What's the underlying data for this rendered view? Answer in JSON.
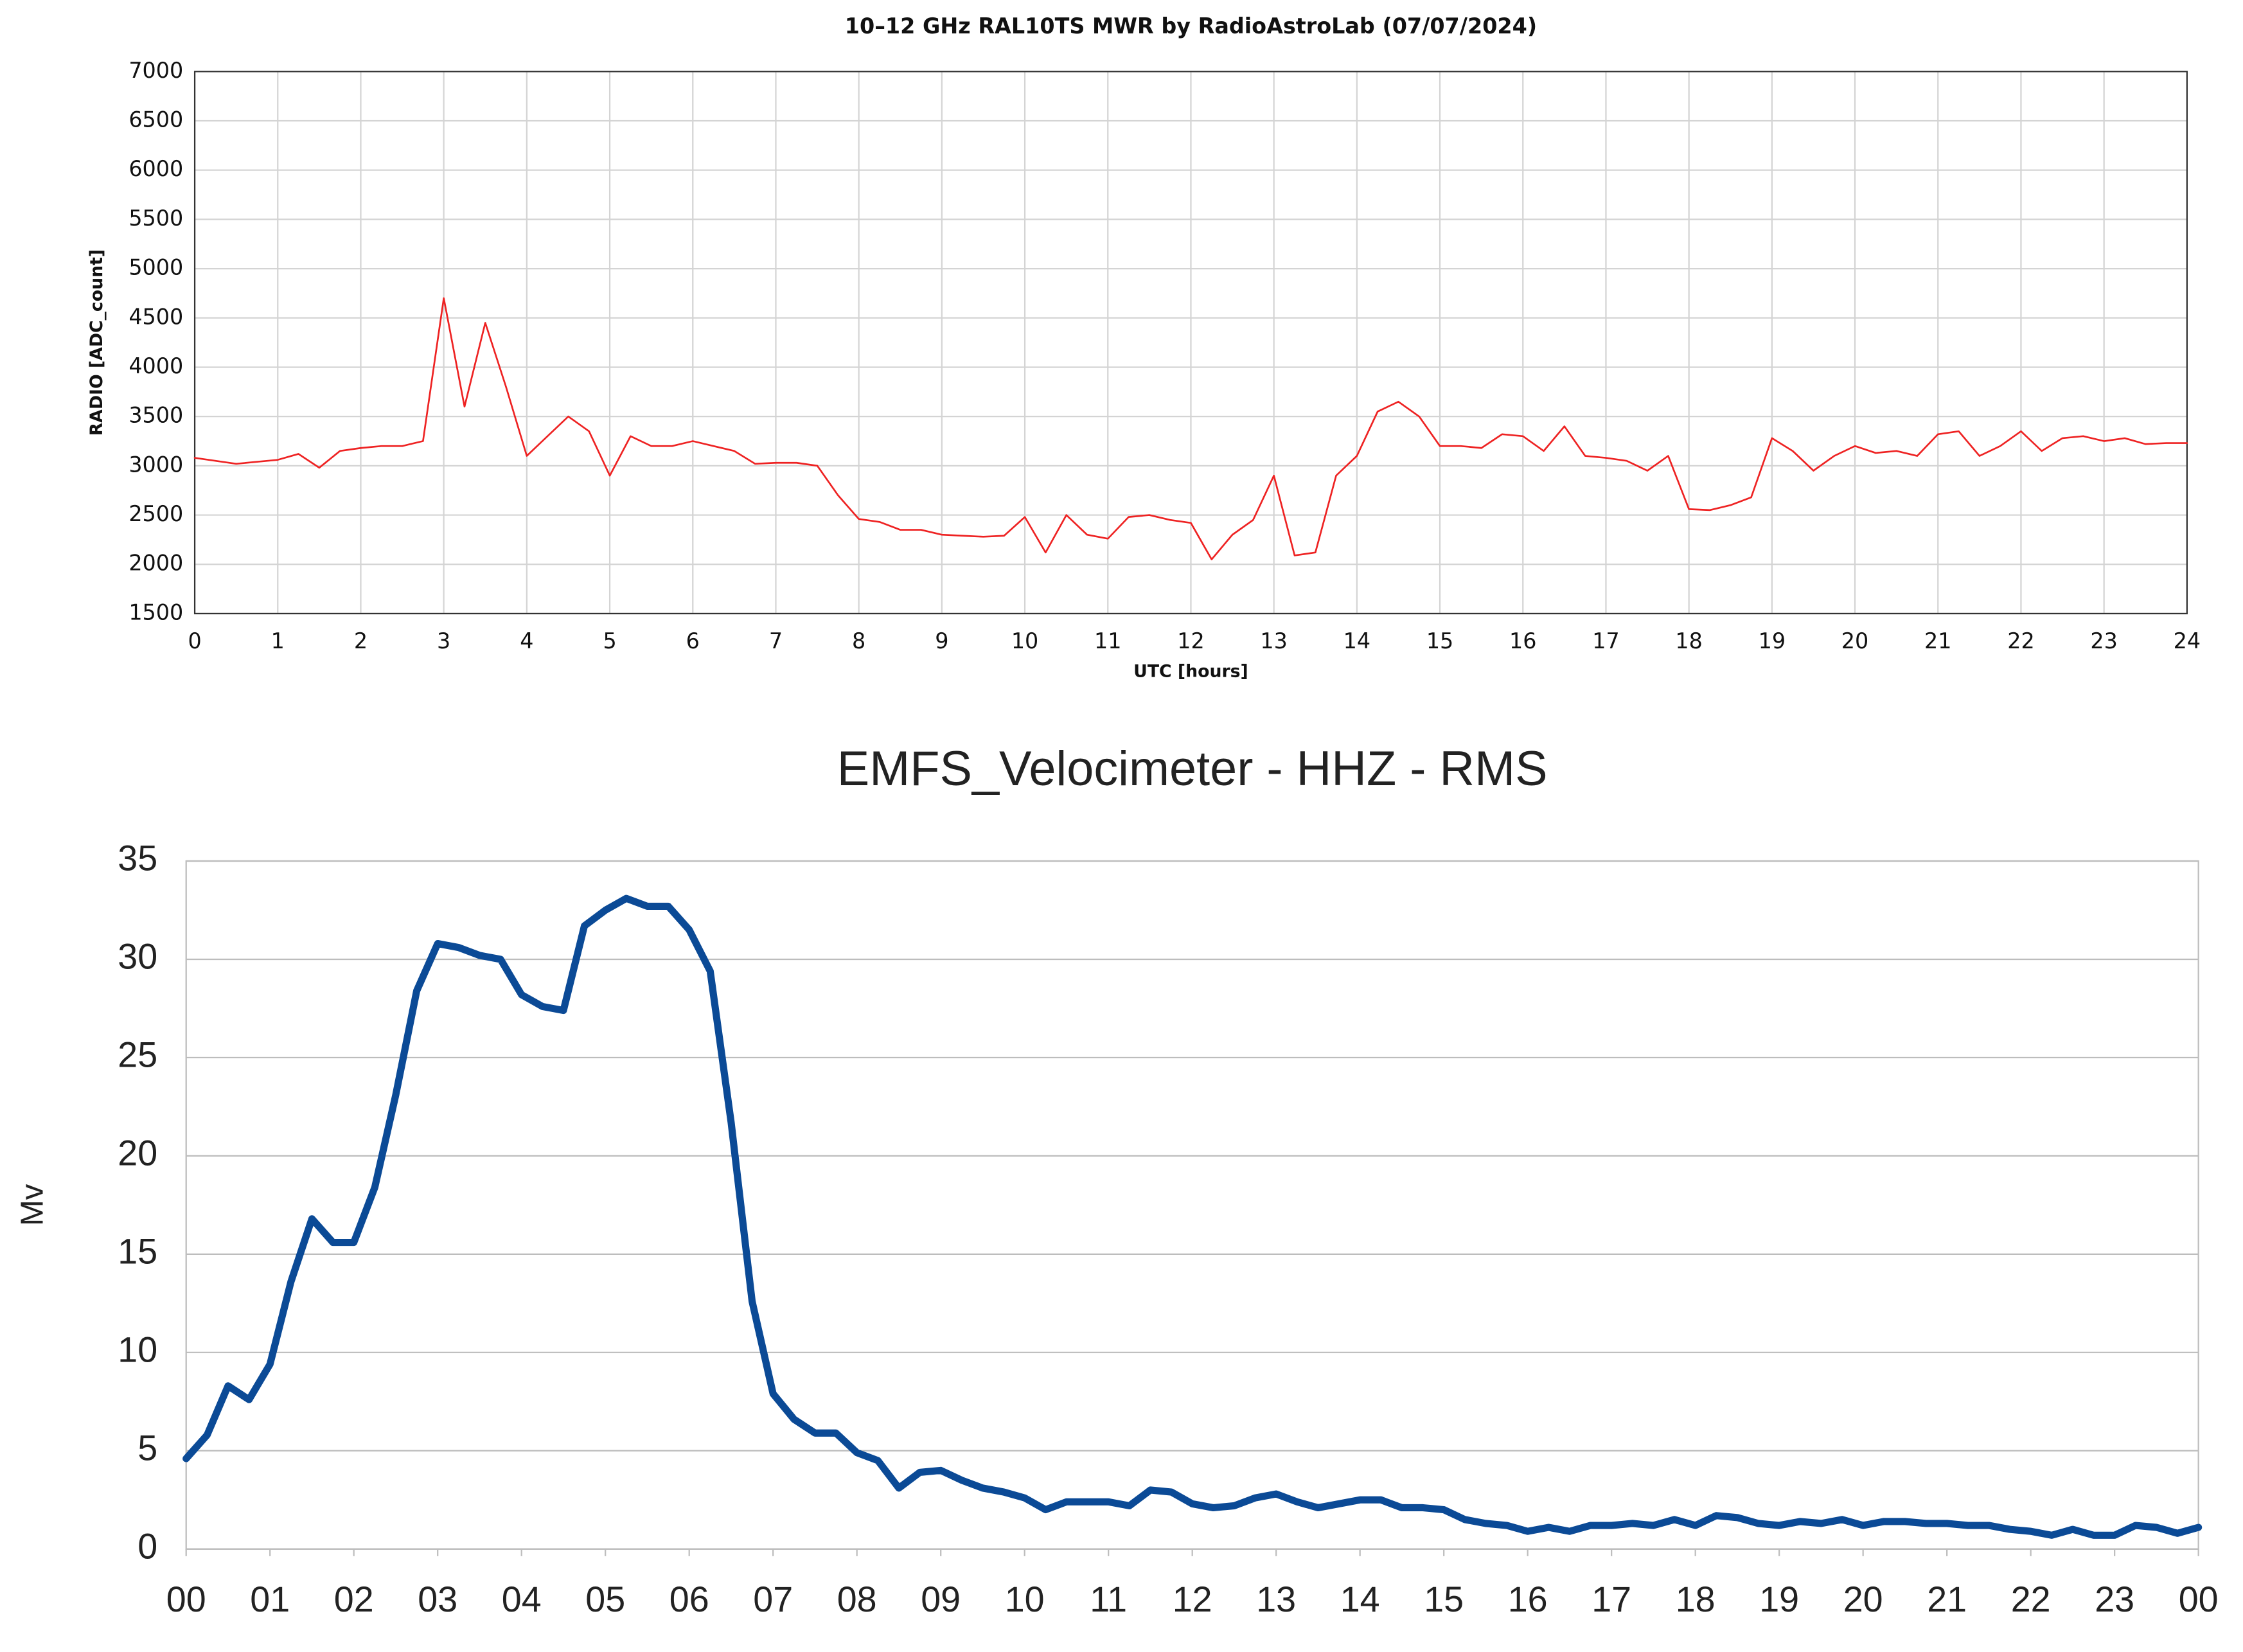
{
  "chart_data": [
    {
      "type": "line",
      "title": "10–12 GHz RAL10TS MWR by RadioAstroLab  (07/07/2024)",
      "xlabel": "UTC [hours]",
      "ylabel": "RADIO [ADC_count]",
      "x": [
        0,
        0.25,
        0.5,
        0.75,
        1,
        1.25,
        1.5,
        1.75,
        2,
        2.25,
        2.5,
        2.75,
        3,
        3.25,
        3.5,
        3.75,
        4,
        4.25,
        4.5,
        4.75,
        5,
        5.25,
        5.5,
        5.75,
        6,
        6.25,
        6.5,
        6.75,
        7,
        7.25,
        7.5,
        7.75,
        8,
        8.25,
        8.5,
        8.75,
        9,
        9.25,
        9.5,
        9.75,
        10,
        10.25,
        10.5,
        10.75,
        11,
        11.25,
        11.5,
        11.75,
        12,
        12.25,
        12.5,
        12.75,
        13,
        13.25,
        13.5,
        13.75,
        14,
        14.25,
        14.5,
        14.75,
        15,
        15.25,
        15.5,
        15.75,
        16,
        16.25,
        16.5,
        16.75,
        17,
        17.25,
        17.5,
        17.75,
        18,
        18.25,
        18.5,
        18.75,
        19,
        19.25,
        19.5,
        19.75,
        20,
        20.25,
        20.5,
        20.75,
        21,
        21.25,
        21.5,
        21.75,
        22,
        22.25,
        22.5,
        22.75,
        23,
        23.25,
        23.5,
        23.75,
        24
      ],
      "series": [
        {
          "name": "RADIO",
          "color": "#ee2222",
          "values": [
            3080,
            3050,
            3020,
            3040,
            3060,
            3120,
            2980,
            3150,
            3180,
            3200,
            3200,
            3250,
            4700,
            3600,
            4450,
            3800,
            3100,
            3300,
            3500,
            3350,
            2900,
            3300,
            3200,
            3200,
            3250,
            3200,
            3150,
            3020,
            3030,
            3030,
            3000,
            2700,
            2460,
            2430,
            2350,
            2350,
            2300,
            2290,
            2280,
            2290,
            2480,
            2120,
            2500,
            2300,
            2260,
            2480,
            2500,
            2450,
            2420,
            2050,
            2300,
            2450,
            2900,
            2090,
            2120,
            2900,
            3100,
            3550,
            3650,
            3500,
            3200,
            3200,
            3180,
            3320,
            3300,
            3150,
            3400,
            3100,
            3080,
            3050,
            2950,
            3100,
            2560,
            2550,
            2600,
            2680,
            3280,
            3150,
            2950,
            3100,
            3200,
            3130,
            3150,
            3100,
            3320,
            3350,
            3100,
            3200,
            3350,
            3150,
            3280,
            3300,
            3250,
            3280,
            3220,
            3230,
            3230
          ]
        }
      ],
      "xlim": [
        0,
        24
      ],
      "xticks": [
        0,
        1,
        2,
        3,
        4,
        5,
        6,
        7,
        8,
        9,
        10,
        11,
        12,
        13,
        14,
        15,
        16,
        17,
        18,
        19,
        20,
        21,
        22,
        23,
        24
      ],
      "ylim": [
        1500,
        7000
      ],
      "yticks": [
        1500,
        2000,
        2500,
        3000,
        3500,
        4000,
        4500,
        5000,
        5500,
        6000,
        6500,
        7000
      ],
      "grid": "both"
    },
    {
      "type": "line",
      "title": "EMFS_Velocimeter - HHZ - RMS",
      "ylabel": "Mv",
      "x": [
        0,
        0.25,
        0.5,
        0.75,
        1,
        1.25,
        1.5,
        1.75,
        2,
        2.25,
        2.5,
        2.75,
        3,
        3.25,
        3.5,
        3.75,
        4,
        4.25,
        4.5,
        4.75,
        5,
        5.25,
        5.5,
        5.75,
        6,
        6.25,
        6.5,
        6.75,
        7,
        7.25,
        7.5,
        7.75,
        8,
        8.25,
        8.5,
        8.75,
        9,
        9.25,
        9.5,
        9.75,
        10,
        10.25,
        10.5,
        10.75,
        11,
        11.25,
        11.5,
        11.75,
        12,
        12.25,
        12.5,
        12.75,
        13,
        13.25,
        13.5,
        13.75,
        14,
        14.25,
        14.5,
        14.75,
        15,
        15.25,
        15.5,
        15.75,
        16,
        16.25,
        16.5,
        16.75,
        17,
        17.25,
        17.5,
        17.75,
        18,
        18.25,
        18.5,
        18.75,
        19,
        19.25,
        19.5,
        19.75,
        20,
        20.25,
        20.5,
        20.75,
        21,
        21.25,
        21.5,
        21.75,
        22,
        22.25,
        22.5,
        22.75,
        23,
        23.25,
        23.5,
        23.75,
        24
      ],
      "series": [
        {
          "name": "RMS",
          "color": "#0b4a96",
          "values": [
            4.6,
            5.8,
            8.3,
            7.6,
            9.4,
            13.6,
            16.8,
            15.6,
            15.6,
            18.4,
            23.1,
            28.4,
            30.8,
            30.6,
            30.2,
            30.0,
            28.2,
            27.6,
            27.4,
            31.7,
            32.5,
            33.1,
            32.7,
            32.7,
            31.5,
            29.4,
            21.7,
            12.6,
            7.9,
            6.6,
            5.9,
            5.9,
            4.9,
            4.5,
            3.1,
            3.9,
            4.0,
            3.5,
            3.1,
            2.9,
            2.6,
            2.0,
            2.4,
            2.4,
            2.4,
            2.2,
            3.0,
            2.9,
            2.3,
            2.1,
            2.2,
            2.6,
            2.8,
            2.4,
            2.1,
            2.3,
            2.5,
            2.5,
            2.1,
            2.1,
            2.0,
            1.5,
            1.3,
            1.2,
            0.9,
            1.1,
            0.9,
            1.2,
            1.2,
            1.3,
            1.2,
            1.5,
            1.2,
            1.7,
            1.6,
            1.3,
            1.2,
            1.4,
            1.3,
            1.5,
            1.2,
            1.4,
            1.4,
            1.3,
            1.3,
            1.2,
            1.2,
            1.0,
            0.9,
            0.7,
            1.0,
            0.7,
            0.7,
            1.2,
            1.1,
            0.8,
            1.1
          ]
        }
      ],
      "xlim": [
        0,
        24
      ],
      "xticks": [
        {
          "value": 0,
          "label": "00"
        },
        {
          "value": 1,
          "label": "01"
        },
        {
          "value": 2,
          "label": "02"
        },
        {
          "value": 3,
          "label": "03"
        },
        {
          "value": 4,
          "label": "04"
        },
        {
          "value": 5,
          "label": "05"
        },
        {
          "value": 6,
          "label": "06"
        },
        {
          "value": 7,
          "label": "07"
        },
        {
          "value": 8,
          "label": "08"
        },
        {
          "value": 9,
          "label": "09"
        },
        {
          "value": 10,
          "label": "10"
        },
        {
          "value": 11,
          "label": "11"
        },
        {
          "value": 12,
          "label": "12"
        },
        {
          "value": 13,
          "label": "13"
        },
        {
          "value": 14,
          "label": "14"
        },
        {
          "value": 15,
          "label": "15"
        },
        {
          "value": 16,
          "label": "16"
        },
        {
          "value": 17,
          "label": "17"
        },
        {
          "value": 18,
          "label": "18"
        },
        {
          "value": 19,
          "label": "19"
        },
        {
          "value": 20,
          "label": "20"
        },
        {
          "value": 21,
          "label": "21"
        },
        {
          "value": 22,
          "label": "22"
        },
        {
          "value": 23,
          "label": "23"
        },
        {
          "value": 24,
          "label": "00"
        }
      ],
      "ylim": [
        0,
        35
      ],
      "yticks": [
        0,
        5,
        10,
        15,
        20,
        25,
        30,
        35
      ],
      "grid": "y"
    }
  ]
}
